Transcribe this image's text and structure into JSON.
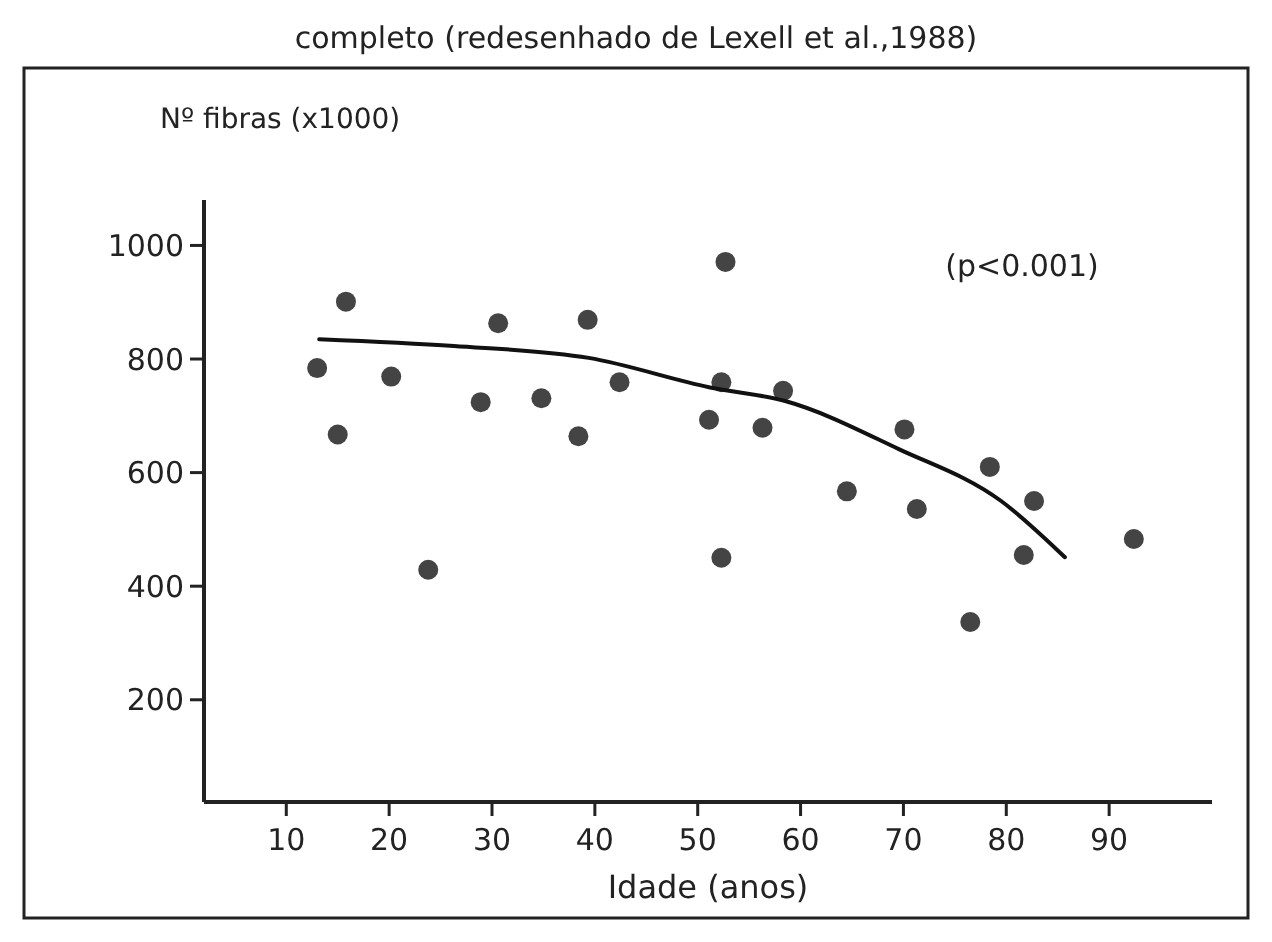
{
  "chart_data": {
    "type": "scatter",
    "title": "completo (redesenhado de Lexell et al.,1988)",
    "xlabel": "Idade (anos)",
    "ylabel": "Nº fibras (x1000)",
    "annotations": [
      "(p<0.001)"
    ],
    "xlim": [
      2,
      100
    ],
    "xticks": [
      10,
      20,
      30,
      40,
      50,
      60,
      70,
      80,
      90
    ],
    "ylim": [
      20,
      1080
    ],
    "yticks": [
      200,
      400,
      600,
      800,
      1000
    ],
    "grid": false,
    "marker": "circle",
    "series": [
      {
        "color": "#444444",
        "x": [
          13,
          15,
          15.8,
          20.2,
          23.8,
          28.9,
          30.6,
          34.8,
          38.4,
          39.3,
          42.4,
          51.1,
          52.7,
          52.3,
          52.3,
          58.3,
          56.3,
          64.5,
          70.1,
          71.3,
          78.4,
          76.5,
          82.7,
          81.7,
          92.4
        ],
        "values": [
          784,
          667,
          901,
          769,
          429,
          724,
          863,
          731,
          664,
          869,
          759,
          693,
          971,
          759,
          450,
          744,
          679,
          567,
          676,
          536,
          610,
          337,
          550,
          455,
          483
        ]
      },
      {
        "type": "line",
        "color": "#111111",
        "line_style": "solid",
        "marker": "none",
        "x": [
          13.2,
          26.3,
          39.4,
          51.2,
          58.5,
          69.6,
          79.5,
          85.7
        ],
        "values": [
          835,
          823,
          802,
          750,
          726,
          641,
          550,
          451
        ]
      }
    ]
  }
}
